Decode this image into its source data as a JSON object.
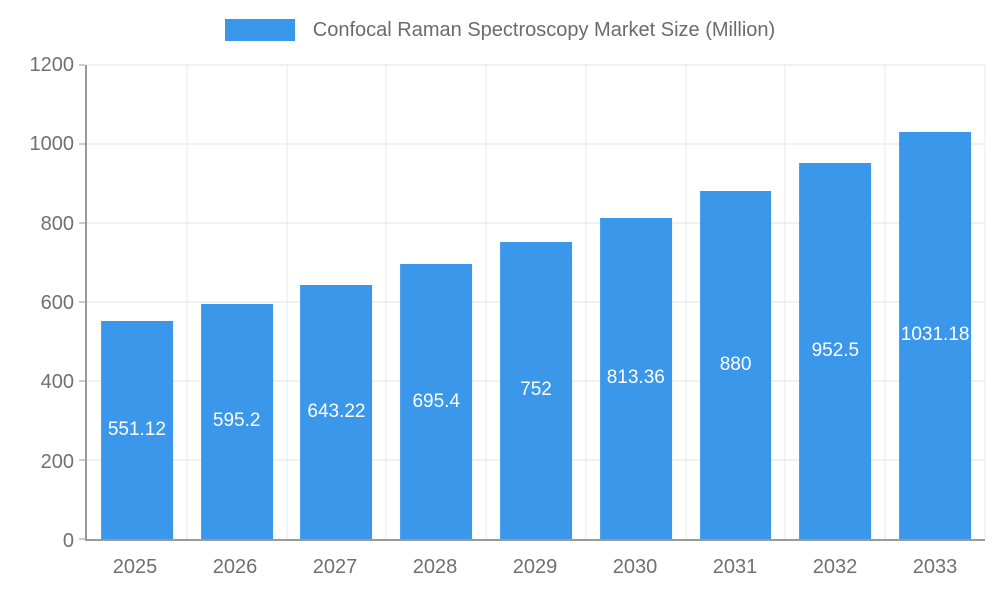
{
  "chart_data": {
    "type": "bar",
    "title": "Confocal Raman Spectroscopy Market Size (Million)",
    "categories": [
      "2025",
      "2026",
      "2027",
      "2028",
      "2029",
      "2030",
      "2031",
      "2032",
      "2033"
    ],
    "values": [
      551.12,
      595.2,
      643.22,
      695.4,
      752,
      813.36,
      880,
      952.5,
      1031.18
    ],
    "value_labels": [
      "551.12",
      "595.2",
      "643.22",
      "695.4",
      "752",
      "813.36",
      "880",
      "952.5",
      "1031.18"
    ],
    "xlabel": "",
    "ylabel": "",
    "ylim": [
      0,
      1200
    ],
    "yticks": [
      0,
      200,
      400,
      600,
      800,
      1000,
      1200
    ],
    "grid": true,
    "legend_position": "top",
    "colors": {
      "bar": "#3b97ea",
      "bar_label_text": "#ffffff",
      "axis_text": "#707070",
      "title_text": "#6b6b6b",
      "gridline": "#e3e3e3",
      "axis_line": "#9a9a9a",
      "background": "#ffffff"
    }
  }
}
